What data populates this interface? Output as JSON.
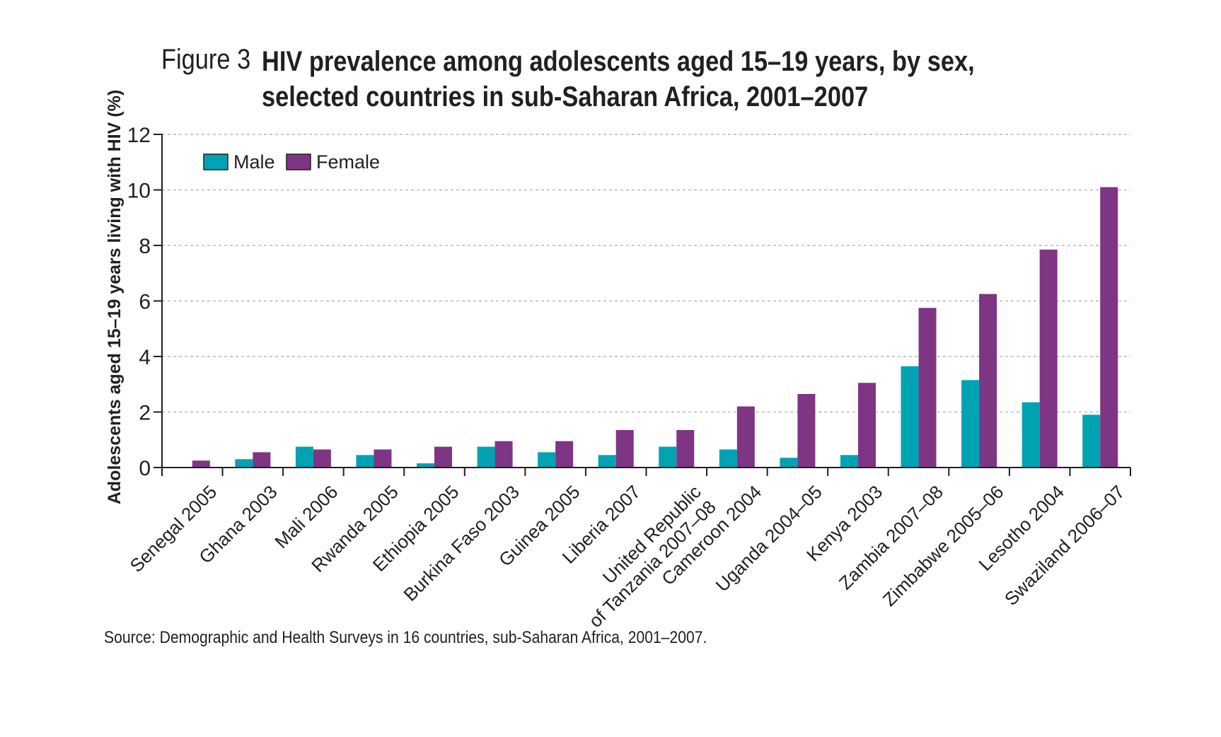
{
  "header": {
    "figure_label": "Figure 3",
    "title": "HIV prevalence among adolescents aged 15–19 years, by sex, selected countries in sub-Saharan Africa, 2001–2007"
  },
  "footer": {
    "source": "Source: Demographic and Health Surveys in 16 countries, sub-Saharan Africa, 2001–2007."
  },
  "chart_data": {
    "type": "bar",
    "ylabel": "Adolescents aged 15–19 years living with HIV (%)",
    "xlabel": "",
    "ylim": [
      0,
      12
    ],
    "yticks": [
      0,
      2,
      4,
      6,
      8,
      10,
      12
    ],
    "grid": "horizontal dashed",
    "legend_position": "top-left",
    "categories": [
      [
        "Senegal 2005"
      ],
      [
        "Ghana 2003"
      ],
      [
        "Mali 2006"
      ],
      [
        "Rwanda 2005"
      ],
      [
        "Ethiopia 2005"
      ],
      [
        "Burkina Faso 2003"
      ],
      [
        "Guinea 2005"
      ],
      [
        "Liberia 2007"
      ],
      [
        "United Republic",
        "of Tanzania 2007–08"
      ],
      [
        "Cameroon 2004"
      ],
      [
        "Uganda 2004–05"
      ],
      [
        "Kenya 2003"
      ],
      [
        "Zambia 2007–08"
      ],
      [
        "Zimbabwe 2005–06"
      ],
      [
        "Lesotho 2004"
      ],
      [
        "Swaziland 2006–07"
      ]
    ],
    "series": [
      {
        "name": "Male",
        "color": "#00a3b2",
        "values": [
          0.0,
          0.3,
          0.75,
          0.45,
          0.15,
          0.75,
          0.55,
          0.45,
          0.75,
          0.65,
          0.35,
          0.45,
          3.65,
          3.15,
          2.35,
          1.9
        ]
      },
      {
        "name": "Female",
        "color": "#7d3584",
        "values": [
          0.25,
          0.55,
          0.65,
          0.65,
          0.75,
          0.95,
          0.95,
          1.35,
          1.35,
          2.2,
          2.65,
          3.05,
          5.75,
          6.25,
          7.85,
          10.1
        ]
      }
    ]
  }
}
